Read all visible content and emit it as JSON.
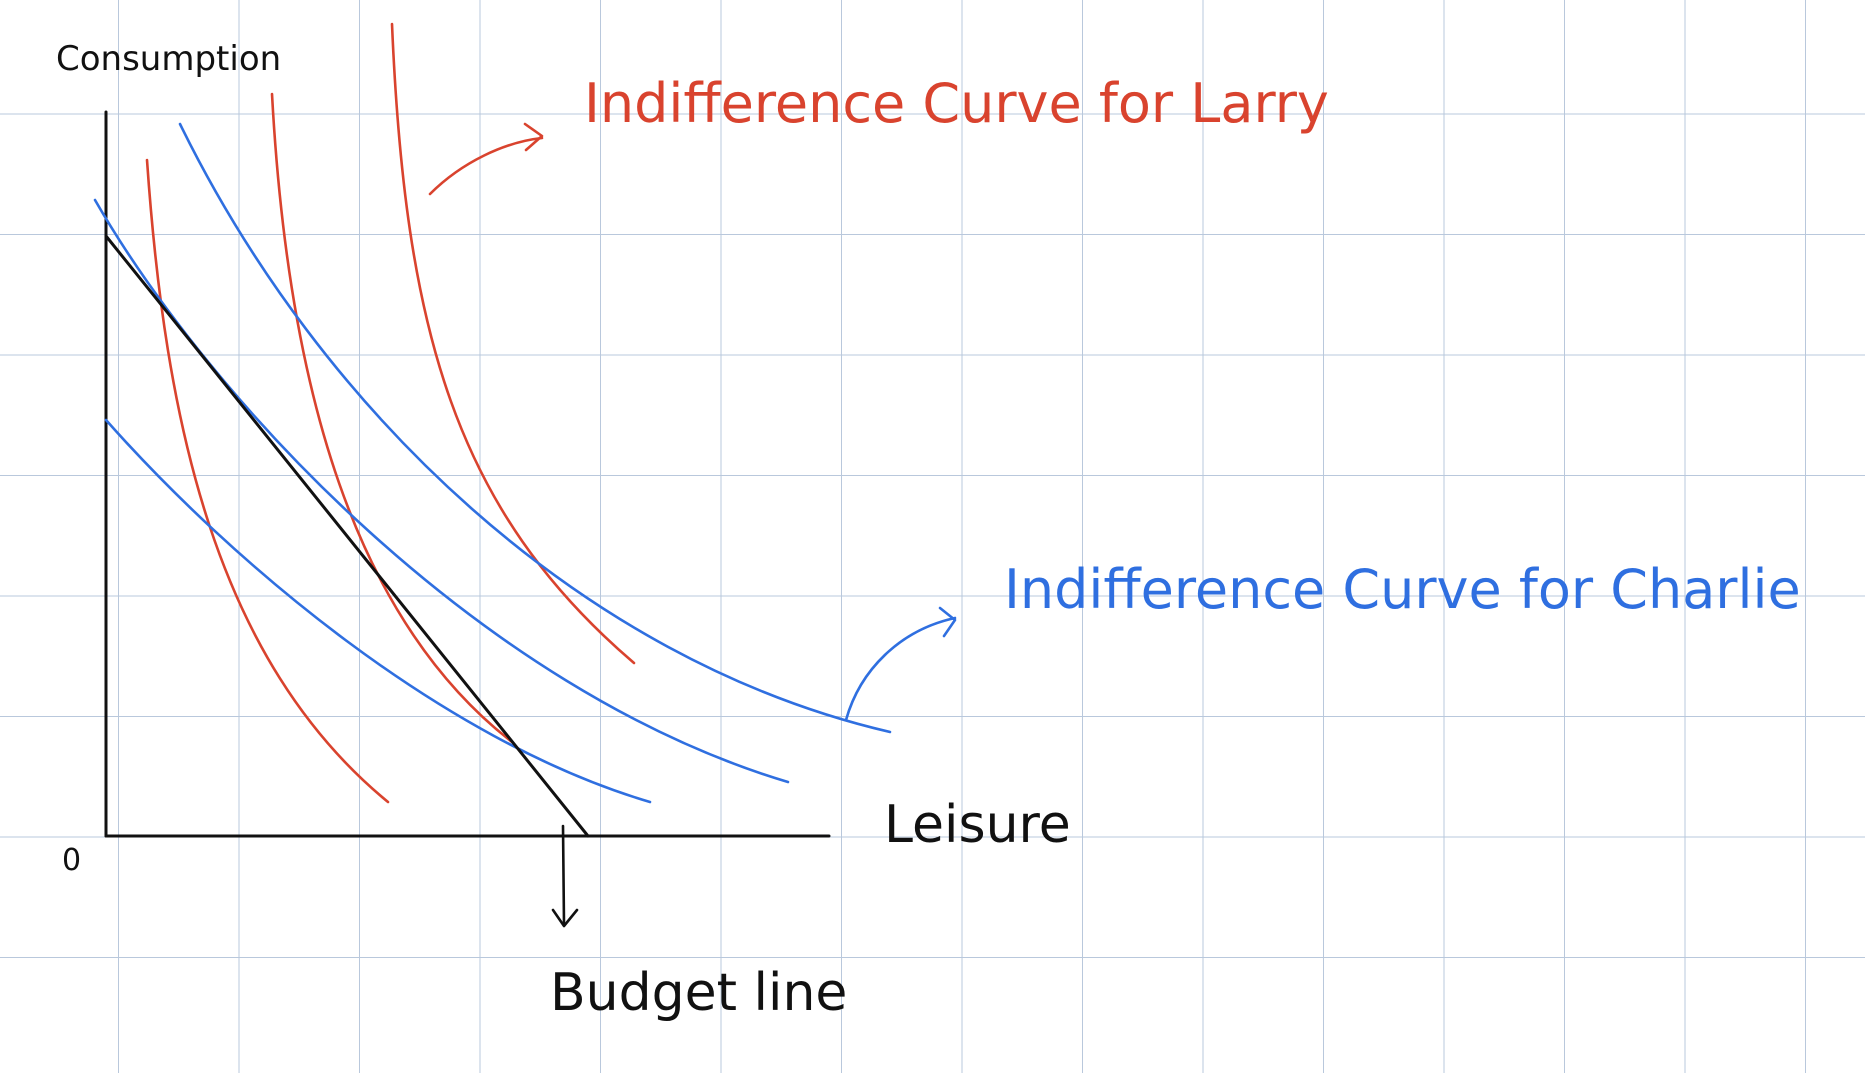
{
  "axes": {
    "y_label": "Consumption",
    "x_label": "Leisure",
    "origin_label": "0"
  },
  "labels": {
    "larry": "Indifference Curve for Larry",
    "charlie": "Indifference Curve for Charlie",
    "budget_line": "Budget line"
  },
  "colors": {
    "larry": "#d9432e",
    "charlie": "#2f6fe0",
    "ink": "#111111",
    "grid": "#b9c8dc"
  },
  "legend": {
    "larry_curve_count": 3,
    "charlie_curve_count": 3
  }
}
